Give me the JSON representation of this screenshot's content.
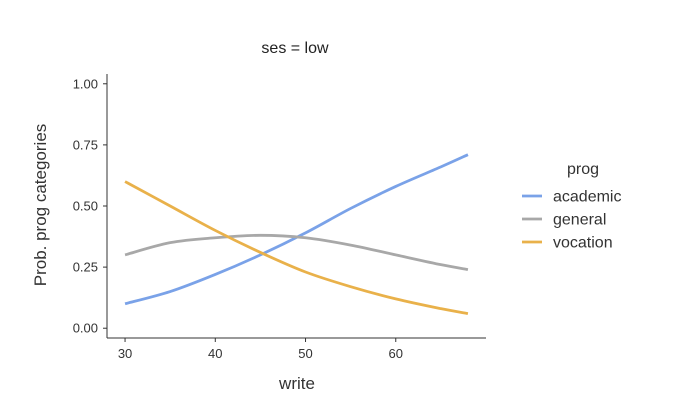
{
  "chart_data": {
    "type": "line",
    "title": "ses = low",
    "xlabel": "write",
    "ylabel": "Prob. prog categories",
    "xlim": [
      28,
      70
    ],
    "ylim": [
      -0.04,
      1.04
    ],
    "x_ticks": [
      30,
      40,
      50,
      60
    ],
    "x_tick_labels": [
      "30",
      "40",
      "50",
      "60"
    ],
    "y_ticks": [
      0,
      0.25,
      0.5,
      0.75,
      1.0
    ],
    "y_tick_labels": [
      "0.00",
      "0.25",
      "0.50",
      "0.75",
      "1.00"
    ],
    "grid": false,
    "legend": {
      "title": "prog",
      "position": "right"
    },
    "x": [
      30,
      35,
      40,
      45,
      50,
      55,
      60,
      65,
      68
    ],
    "series": [
      {
        "name": "academic",
        "color": "#7aa2e8",
        "values": [
          0.1,
          0.15,
          0.22,
          0.3,
          0.39,
          0.49,
          0.58,
          0.66,
          0.71
        ]
      },
      {
        "name": "general",
        "color": "#a8a8a8",
        "values": [
          0.3,
          0.35,
          0.37,
          0.38,
          0.37,
          0.34,
          0.3,
          0.26,
          0.24
        ]
      },
      {
        "name": "vocation",
        "color": "#e9b14a",
        "values": [
          0.6,
          0.5,
          0.4,
          0.31,
          0.23,
          0.17,
          0.12,
          0.08,
          0.06
        ]
      }
    ]
  }
}
